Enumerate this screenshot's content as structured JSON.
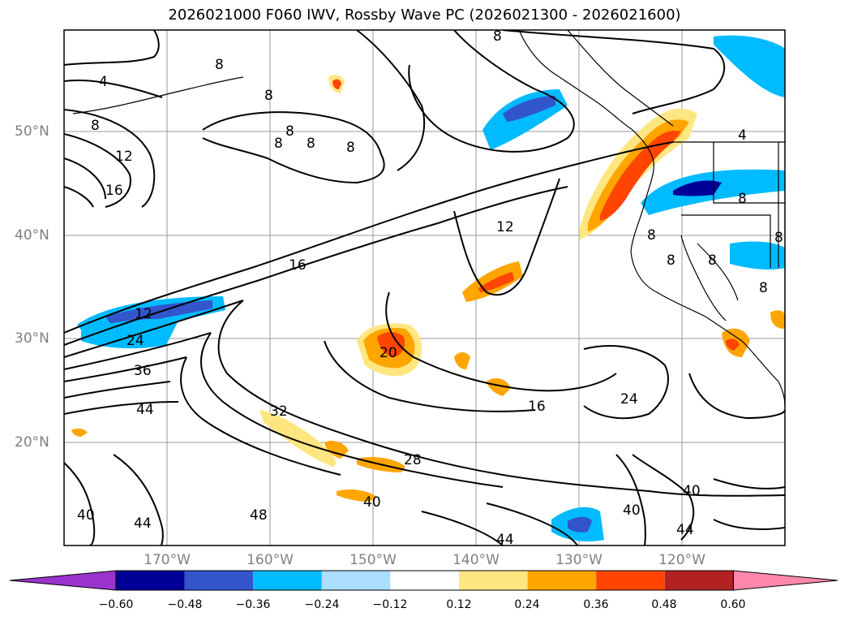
{
  "title": "2026021000 F060 IWV, Rossby Wave PC (2026021300 - 2026021600)",
  "latitude_labels": [
    "50°N",
    "40°N",
    "30°N",
    "20°N"
  ],
  "longitude_labels": [
    "170°W",
    "160°W",
    "150°W",
    "140°W",
    "130°W",
    "120°W"
  ],
  "colorbar": {
    "extend": "both",
    "tick_labels": [
      "−0.60",
      "−0.48",
      "−0.36",
      "−0.24",
      "−0.12",
      "0.12",
      "0.24",
      "0.36",
      "0.48",
      "0.60"
    ],
    "colors": [
      "#9933cc",
      "#000099",
      "#3355cc",
      "#00bbff",
      "#aaddff",
      "#ffffff",
      "#ffe680",
      "#ffa500",
      "#ff4500",
      "#b22222",
      "#ff88aa"
    ]
  },
  "contour_labels": [
    "4",
    "8",
    "8",
    "8",
    "8",
    "8",
    "8",
    "8",
    "8",
    "12",
    "16",
    "12",
    "16",
    "12",
    "24",
    "36",
    "44",
    "32",
    "20",
    "16",
    "28",
    "24",
    "40",
    "48",
    "44",
    "40",
    "40",
    "40",
    "44",
    "44",
    "4",
    "8",
    "8",
    "8",
    "8",
    "8",
    "8"
  ],
  "colors": {
    "land_outline": "#000000",
    "grid": "#999999",
    "contour": "#000000"
  }
}
